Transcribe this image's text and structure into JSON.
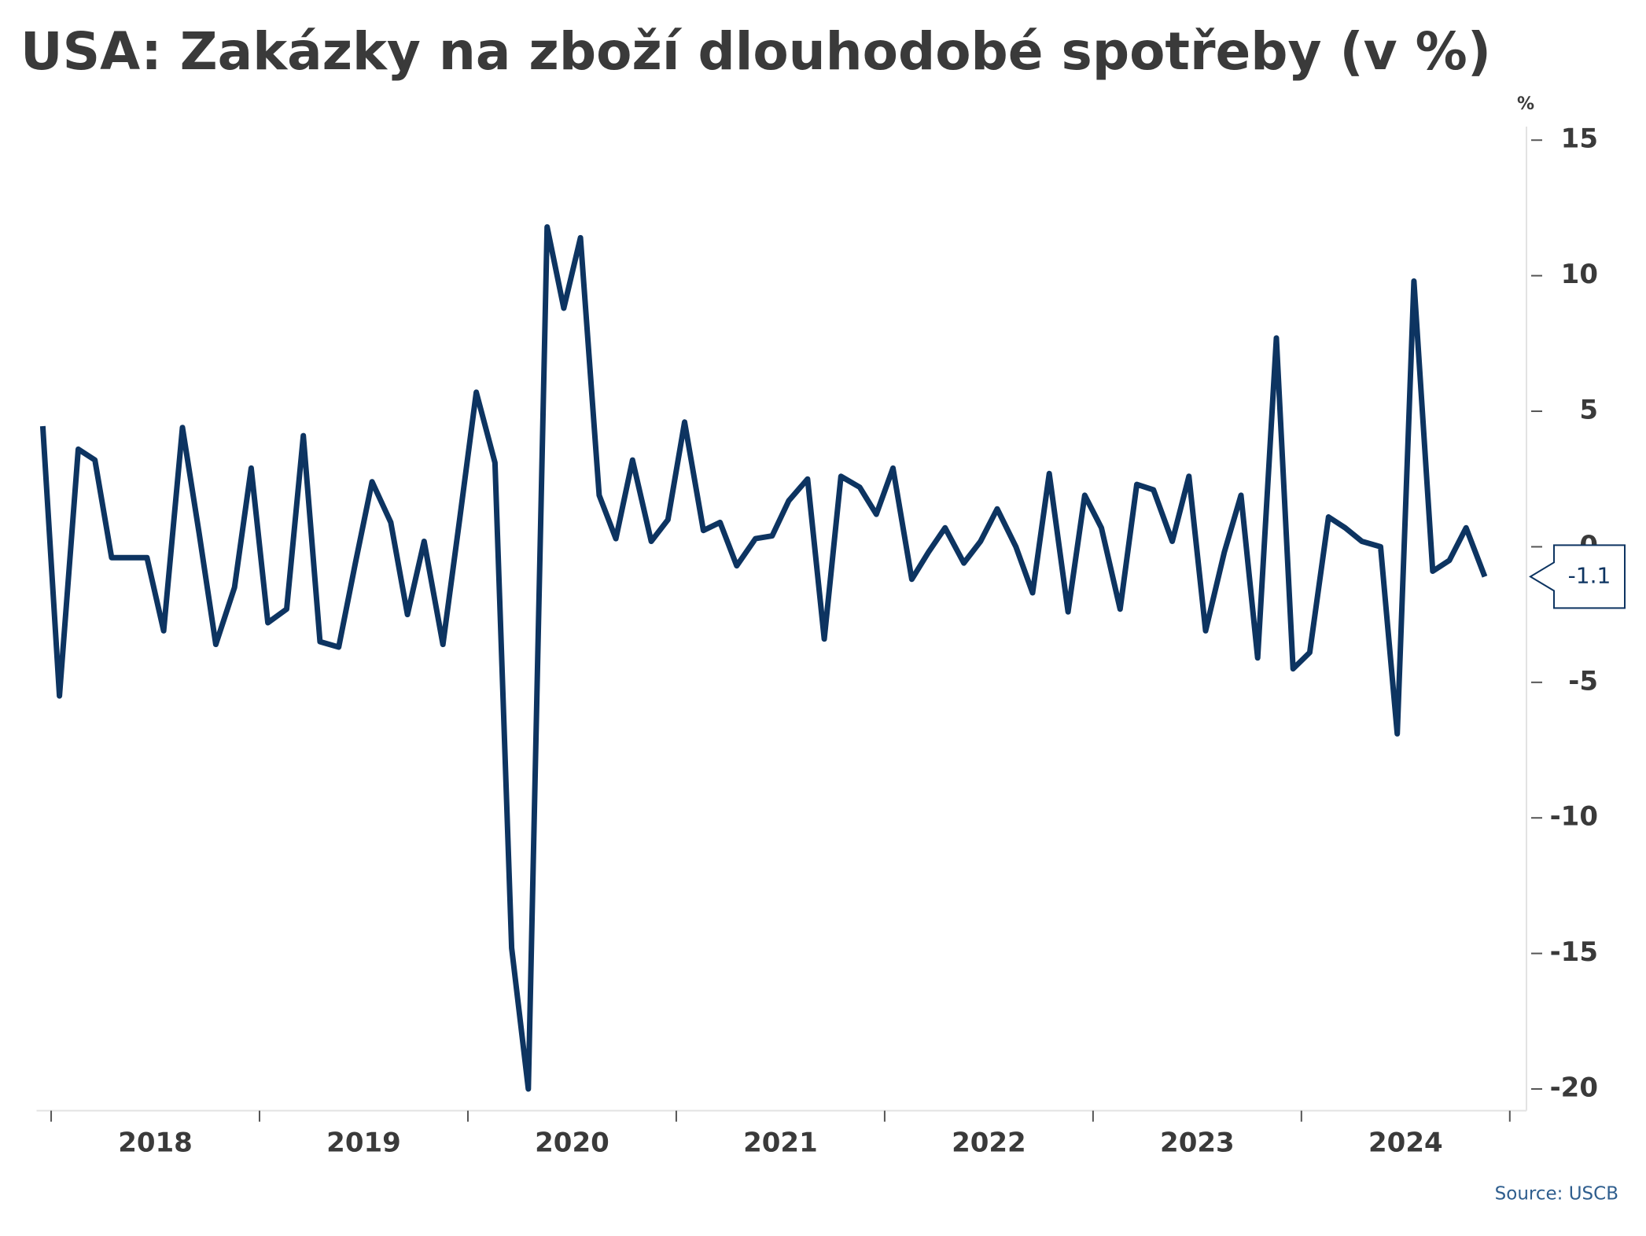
{
  "chart_data": {
    "type": "line",
    "title": "USA: Zakázky na zboží dlouhodobé spotřeby (v %)",
    "y_unit": "%",
    "source": "Source: USCB",
    "callout": "-1.1",
    "x": [
      2017.96,
      2018.04,
      2018.13,
      2018.21,
      2018.29,
      2018.38,
      2018.46,
      2018.54,
      2018.63,
      2018.71,
      2018.79,
      2018.88,
      2018.96,
      2019.04,
      2019.13,
      2019.21,
      2019.29,
      2019.38,
      2019.46,
      2019.54,
      2019.63,
      2019.71,
      2019.79,
      2019.88,
      2019.96,
      2020.04,
      2020.13,
      2020.21,
      2020.29,
      2020.38,
      2020.46,
      2020.54,
      2020.63,
      2020.71,
      2020.79,
      2020.88,
      2020.96,
      2021.04,
      2021.13,
      2021.21,
      2021.29,
      2021.38,
      2021.46,
      2021.54,
      2021.63,
      2021.71,
      2021.79,
      2021.88,
      2021.96,
      2022.04,
      2022.13,
      2022.21,
      2022.29,
      2022.38,
      2022.46,
      2022.54,
      2022.63,
      2022.71,
      2022.79,
      2022.88,
      2022.96,
      2023.04,
      2023.13,
      2023.21,
      2023.29,
      2023.38,
      2023.46,
      2023.54,
      2023.63,
      2023.71,
      2023.79,
      2023.88,
      2023.96,
      2024.04,
      2024.13,
      2024.21,
      2024.29,
      2024.38,
      2024.46,
      2024.54,
      2024.63,
      2024.71,
      2024.79,
      2024.88
    ],
    "series": [
      {
        "color": "#0d3461",
        "values": [
          4.45,
          -5.5,
          3.6,
          3.2,
          -0.4,
          -0.4,
          -0.4,
          -3.1,
          4.4,
          0.5,
          -3.6,
          -1.5,
          2.9,
          -2.8,
          -2.3,
          4.1,
          -3.5,
          -3.7,
          -0.6,
          2.4,
          0.9,
          -2.5,
          0.2,
          -3.6,
          1.0,
          5.7,
          3.1,
          -14.8,
          -20.0,
          11.8,
          8.8,
          11.4,
          1.9,
          0.3,
          3.2,
          0.2,
          1.0,
          4.6,
          0.6,
          0.9,
          -0.7,
          0.3,
          0.4,
          1.7,
          2.5,
          -3.4,
          2.6,
          2.2,
          1.2,
          2.9,
          -1.2,
          -0.2,
          0.7,
          -0.6,
          0.2,
          1.4,
          0.0,
          -1.7,
          2.7,
          -2.4,
          1.9,
          0.7,
          -2.3,
          2.3,
          2.1,
          0.2,
          2.6,
          -3.1,
          -0.2,
          1.9,
          -4.1,
          7.7,
          -4.5,
          -3.9,
          1.1,
          0.7,
          0.2,
          0.0,
          -6.9,
          9.8,
          -0.9,
          -0.5,
          0.7,
          -1.1
        ]
      }
    ],
    "xlim": [
      2017.93,
      2025.08
    ],
    "xticks": [
      2018,
      2019,
      2020,
      2021,
      2022,
      2023,
      2024,
      2025
    ],
    "year_labels": [
      2018,
      2019,
      2020,
      2021,
      2022,
      2023,
      2024
    ],
    "ylim": [
      -20.8,
      15.5
    ],
    "yticks": [
      -20,
      -15,
      -10,
      -5,
      0,
      5,
      10,
      15
    ]
  }
}
